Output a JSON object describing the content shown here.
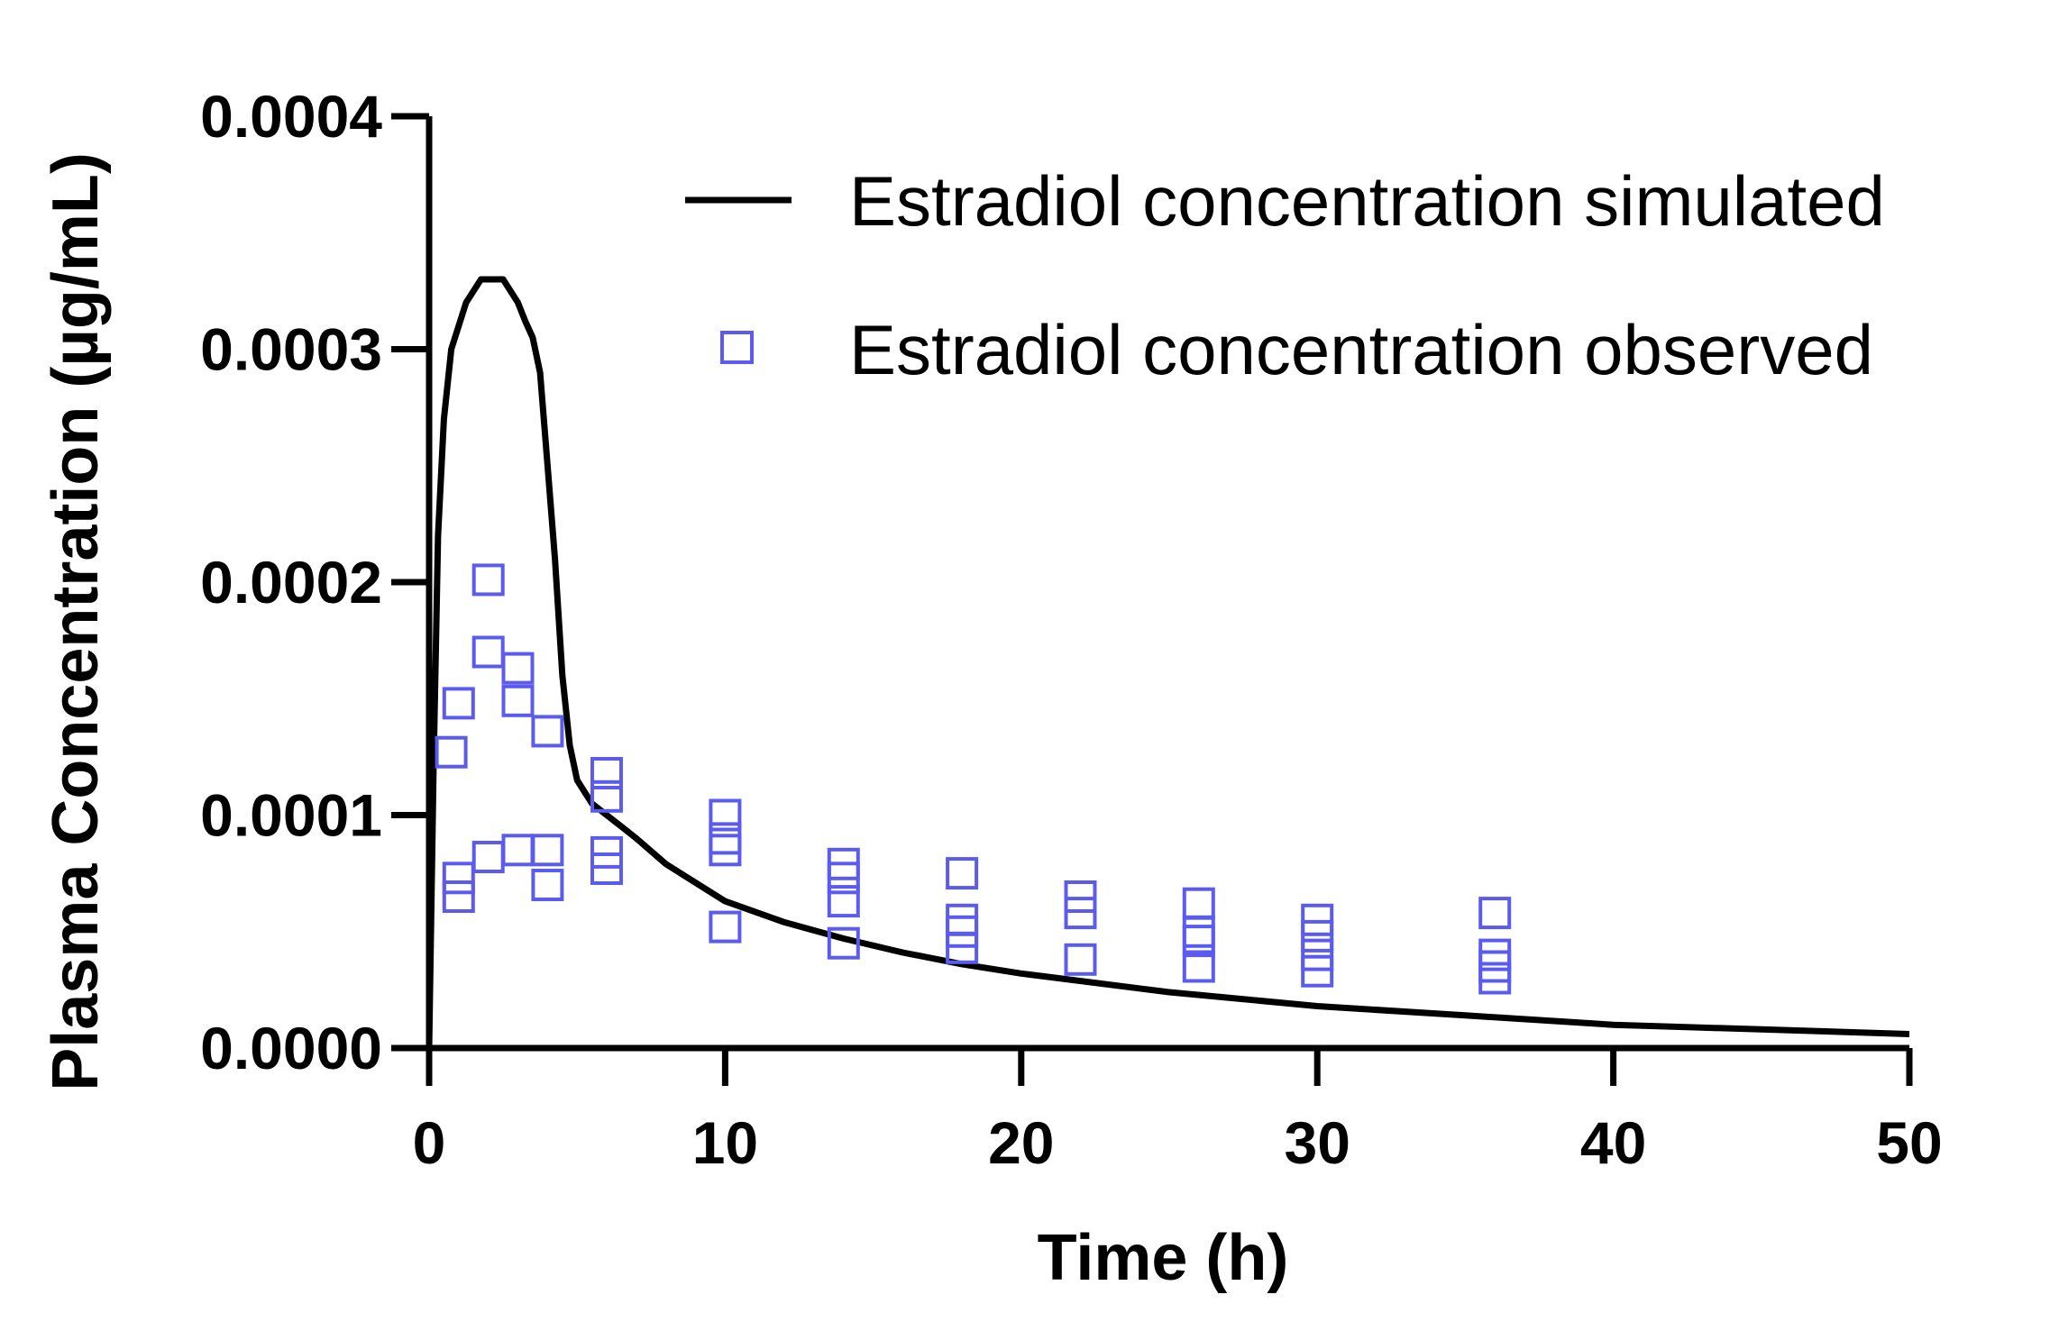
{
  "chart_data": {
    "type": "scatter+line",
    "xlabel": "Time (h)",
    "ylabel": "Plasma Concentration (µg/mL)",
    "xlim": [
      0,
      50
    ],
    "ylim": [
      0,
      0.0004
    ],
    "x_ticks": [
      0,
      10,
      20,
      30,
      40,
      50
    ],
    "x_tick_labels": [
      "0",
      "10",
      "20",
      "30",
      "40",
      "50"
    ],
    "y_ticks": [
      0,
      0.0001,
      0.0002,
      0.0003,
      0.0004
    ],
    "y_tick_labels": [
      "0.0000",
      "0.0001",
      "0.0002",
      "0.0003",
      "0.0004"
    ],
    "grid": false,
    "legend_position": "top-right",
    "series": [
      {
        "name": "Estradiol concentration simulated",
        "kind": "line",
        "color": "#000000",
        "x": [
          0,
          0.15,
          0.3,
          0.5,
          0.75,
          1.0,
          1.25,
          1.5,
          1.75,
          2.0,
          2.5,
          2.75,
          3.0,
          3.25,
          3.5,
          3.75,
          4.0,
          4.25,
          4.5,
          4.75,
          5.0,
          5.5,
          6.0,
          6.5,
          7,
          8,
          10,
          12,
          14,
          16,
          18,
          20,
          25,
          30,
          35,
          40,
          45,
          50
        ],
        "y": [
          0,
          0.00012,
          0.00022,
          0.00027,
          0.0003,
          0.00031,
          0.00032,
          0.000325,
          0.00033,
          0.00033,
          0.00033,
          0.000325,
          0.00032,
          0.000312,
          0.000305,
          0.00029,
          0.00025,
          0.00021,
          0.00016,
          0.00013,
          0.000115,
          0.000105,
          0.0001,
          9.5e-05,
          9e-05,
          7.9e-05,
          6.3e-05,
          5.4e-05,
          4.7e-05,
          4.1e-05,
          3.6e-05,
          3.2e-05,
          2.4e-05,
          1.8e-05,
          1.4e-05,
          1e-05,
          8e-06,
          6e-06
        ]
      },
      {
        "name": "Estradiol concentration observed",
        "kind": "scatter",
        "marker": "open-square",
        "color": "#5b5bf0",
        "x": [
          0.75,
          1.0,
          1.0,
          1.0,
          2.0,
          2.0,
          2.0,
          3.0,
          3.0,
          3.0,
          4.0,
          4.0,
          4.0,
          6.0,
          6.0,
          6.0,
          6.0,
          10.0,
          10.0,
          10.0,
          10.0,
          14.0,
          14.0,
          14.0,
          14.0,
          18.0,
          18.0,
          18.0,
          18.0,
          22.0,
          22.0,
          22.0,
          26.0,
          26.0,
          26.0,
          26.0,
          30.0,
          30.0,
          30.0,
          30.0,
          36.0,
          36.0,
          36.0,
          36.0
        ],
        "y": [
          0.000127,
          0.000148,
          7.3e-05,
          6.5e-05,
          0.000201,
          0.00017,
          8.2e-05,
          0.000163,
          0.000149,
          8.5e-05,
          0.000136,
          8.5e-05,
          7e-05,
          0.000118,
          0.000108,
          8.4e-05,
          7.7e-05,
          0.0001,
          9e-05,
          8.5e-05,
          5.2e-05,
          7.9e-05,
          7.3e-05,
          6.3e-05,
          4.5e-05,
          7.5e-05,
          5.5e-05,
          5e-05,
          4.3e-05,
          6.5e-05,
          5.8e-05,
          3.8e-05,
          6.2e-05,
          5e-05,
          4.6e-05,
          3.5e-05,
          5.5e-05,
          4.8e-05,
          4e-05,
          3.3e-05,
          5.8e-05,
          4e-05,
          3.5e-05,
          3e-05
        ]
      }
    ]
  }
}
